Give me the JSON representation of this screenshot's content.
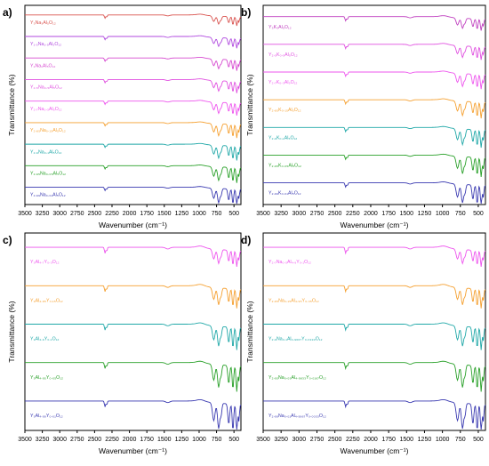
{
  "chart_data": [
    {
      "type": "line",
      "panel_label": "a)",
      "xlabel": "Wavenumber (cm⁻¹)",
      "ylabel": "Transmittance (%)",
      "xlim": [
        3500,
        400
      ],
      "x_ticks": [
        3500,
        3250,
        3000,
        2750,
        2500,
        2250,
        2000,
        1750,
        1500,
        1250,
        1000,
        750,
        500
      ],
      "series": [
        {
          "name": "Y₃Na₃Al₅O₁₂",
          "color": "#d9534f"
        },
        {
          "name": "Y₁.₅Na₁.₅Al₅O₁₂",
          "color": "#b04adf"
        },
        {
          "name": "Y₂Na₁Al₅O₁₂",
          "color": "#d64ad0"
        },
        {
          "name": "Y₂.₅Na₀.₅Al₅O₁₂",
          "color": "#e050e0"
        },
        {
          "name": "Y₂.₇Na₀.₃Al₅O₁₂",
          "color": "#ee55ee"
        },
        {
          "name": "Y₂.₈₅Na₀.₁₅Al₅O₁₂",
          "color": "#f5a030"
        },
        {
          "name": "Y₂.₉Na₀.₁Al₅O₁₂",
          "color": "#20a8a8"
        },
        {
          "name": "Y₂.₉₅Na₀.₀₅Al₅O₁₂",
          "color": "#28a028"
        },
        {
          "name": "Y₂.₉₉Na₀.₀₁Al₅O₁₂",
          "color": "#3838b0"
        }
      ]
    },
    {
      "type": "line",
      "panel_label": "b)",
      "xlabel": "Wavenumber (cm⁻¹)",
      "ylabel": "Transmittance (%)",
      "xlim": [
        3500,
        400
      ],
      "x_ticks": [
        3500,
        3250,
        3000,
        2750,
        2500,
        2250,
        2000,
        1750,
        1500,
        1250,
        1000,
        750,
        500
      ],
      "series": [
        {
          "name": "Y₃K₃Al₅O₁₂",
          "color": "#c040c0"
        },
        {
          "name": "Y₂.₅K₀.₅Al₅O₁₂",
          "color": "#e050e0"
        },
        {
          "name": "Y₂.₇K₀.₃Al₅O₁₂",
          "color": "#ee55ee"
        },
        {
          "name": "Y₂.₈₅K₀.₁₅Al₅O₁₂",
          "color": "#f5a030"
        },
        {
          "name": "Y₂.₉K₀.₁Al₅O₁₂",
          "color": "#20a8a8"
        },
        {
          "name": "Y₂.₉₅K₀.₀₅Al₅O₁₂",
          "color": "#28a028"
        },
        {
          "name": "Y₂.₉₉K₀.₀₁Al₅O₁₂",
          "color": "#3838b0"
        }
      ]
    },
    {
      "type": "line",
      "panel_label": "c)",
      "xlabel": "Wavenumber (cm⁻¹)",
      "ylabel": "Transmittance (%)",
      "xlim": [
        3500,
        400
      ],
      "x_ticks": [
        3500,
        3250,
        3000,
        2750,
        2500,
        2250,
        2000,
        1750,
        1500,
        1250,
        1000,
        750,
        500
      ],
      "series": [
        {
          "name": "Y₃Al₄.₇Y₀.₃O₁₂",
          "color": "#ee55ee"
        },
        {
          "name": "Y₃Al₄.₈₅Y₀.₁₅O₁₂",
          "color": "#f5a030"
        },
        {
          "name": "Y₃Al₄.₉Y₀.₁O₁₂",
          "color": "#20a8a8"
        },
        {
          "name": "Y₃Al₄.₉₅Y₀.₀₅O₁₂",
          "color": "#28a028"
        },
        {
          "name": "Y₃Al₄.₉₉Y₀.₀₁O₁₂",
          "color": "#3838b0"
        }
      ]
    },
    {
      "type": "line",
      "panel_label": "d)",
      "xlabel": "Wavenumber (cm⁻¹)",
      "ylabel": "Transmittance (%)",
      "xlim": [
        3500,
        400
      ],
      "x_ticks": [
        3500,
        3250,
        3000,
        2750,
        2500,
        2250,
        2000,
        1750,
        1500,
        1250,
        1000,
        750,
        500
      ],
      "series": [
        {
          "name": "Y₂.₇Na₀.₃Al₄.₉Y₀.₁O₁₂",
          "color": "#ee55ee"
        },
        {
          "name": "Y₂.₈₅Na₀.₁₅Al₄.₉₅Y₀.₀₅O₁₂",
          "color": "#f5a030"
        },
        {
          "name": "Y₂.₉Na₀.₁Al₄.₉₆₆₇Y₀.₀₃₃₃O₁₂",
          "color": "#20a8a8"
        },
        {
          "name": "Y₂.₉₅Na₀.₀₅Al₄.₉₈₃₃Y₀.₀₁₆₇O₁₂",
          "color": "#28a028"
        },
        {
          "name": "Y₂.₉₉Na₀.₀₁Al₄.₉₉₆₇Y₀.₀₀₃₃O₁₂",
          "color": "#3838b0"
        }
      ]
    }
  ]
}
